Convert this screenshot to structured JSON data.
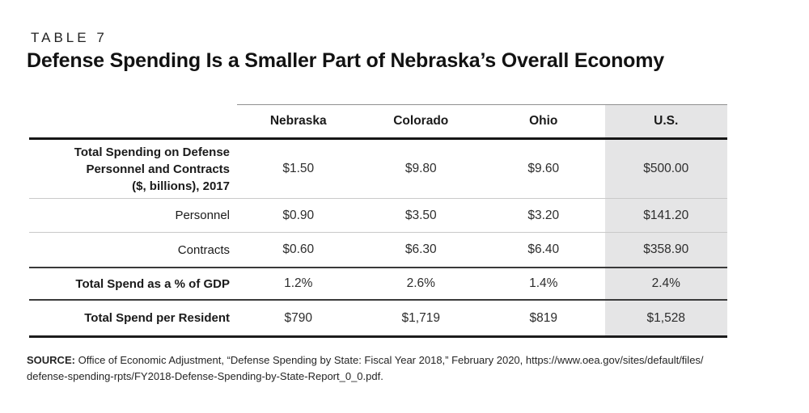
{
  "page": {
    "kicker": "TABLE 7",
    "title": "Defense Spending Is a Smaller Part of Nebraska’s Overall Economy"
  },
  "table": {
    "columns": [
      "Nebraska",
      "Colorado",
      "Ohio",
      "U.S."
    ],
    "highlighted_column": "U.S.",
    "rows": [
      {
        "label": "Total Spending on Defense\nPersonnel and Contracts\n($, billions), 2017",
        "values": [
          "$1.50",
          "$9.80",
          "$9.60",
          "$500.00"
        ]
      },
      {
        "label": "Personnel",
        "values": [
          "$0.90",
          "$3.50",
          "$3.20",
          "$141.20"
        ]
      },
      {
        "label": "Contracts",
        "values": [
          "$0.60",
          "$6.30",
          "$6.40",
          "$358.90"
        ]
      },
      {
        "label": "Total Spend as a % of GDP",
        "values": [
          "1.2%",
          "2.6%",
          "1.4%",
          "2.4%"
        ]
      },
      {
        "label": "Total Spend per Resident",
        "values": [
          "$790",
          "$1,719",
          "$819",
          "$1,528"
        ]
      }
    ]
  },
  "source": {
    "label": "SOURCE:",
    "line1": "Office of Economic Adjustment, “Defense Spending by State: Fiscal Year 2018,” February 2020, https://www.oea.gov/sites/default/files/",
    "line2": "defense-spending-rpts/FY2018-Defense-Spending-by-State-Report_0_0.pdf."
  },
  "colors": {
    "highlight_bg": "#e5e5e6",
    "heavy_rule": "#161616",
    "medium_rule": "#3a3a3a",
    "light_rule": "#c9c9c9",
    "header_top_rule": "#8f8f8f",
    "text": "#1e1e1e"
  },
  "chart_data": {
    "type": "table",
    "title": "Defense Spending Is a Smaller Part of Nebraska’s Overall Economy",
    "kicker": "TABLE 7",
    "columns": [
      "Nebraska",
      "Colorado",
      "Ohio",
      "U.S."
    ],
    "highlighted_column": "U.S.",
    "rows": [
      {
        "label": "Total Spending on Defense Personnel and Contracts ($, billions), 2017",
        "values": [
          "$1.50",
          "$9.80",
          "$9.60",
          "$500.00"
        ]
      },
      {
        "label": "Personnel",
        "values": [
          "$0.90",
          "$3.50",
          "$3.20",
          "$141.20"
        ]
      },
      {
        "label": "Contracts",
        "values": [
          "$0.60",
          "$6.30",
          "$6.40",
          "$358.90"
        ]
      },
      {
        "label": "Total Spend as a % of GDP",
        "values": [
          "1.2%",
          "2.6%",
          "1.4%",
          "2.4%"
        ]
      },
      {
        "label": "Total Spend per Resident",
        "values": [
          "$790",
          "$1,719",
          "$819",
          "$1,528"
        ]
      }
    ],
    "source": "Office of Economic Adjustment, “Defense Spending by State: Fiscal Year 2018,” February 2020, https://www.oea.gov/sites/default/files/defense-spending-rpts/FY2018-Defense-Spending-by-State-Report_0_0.pdf."
  }
}
